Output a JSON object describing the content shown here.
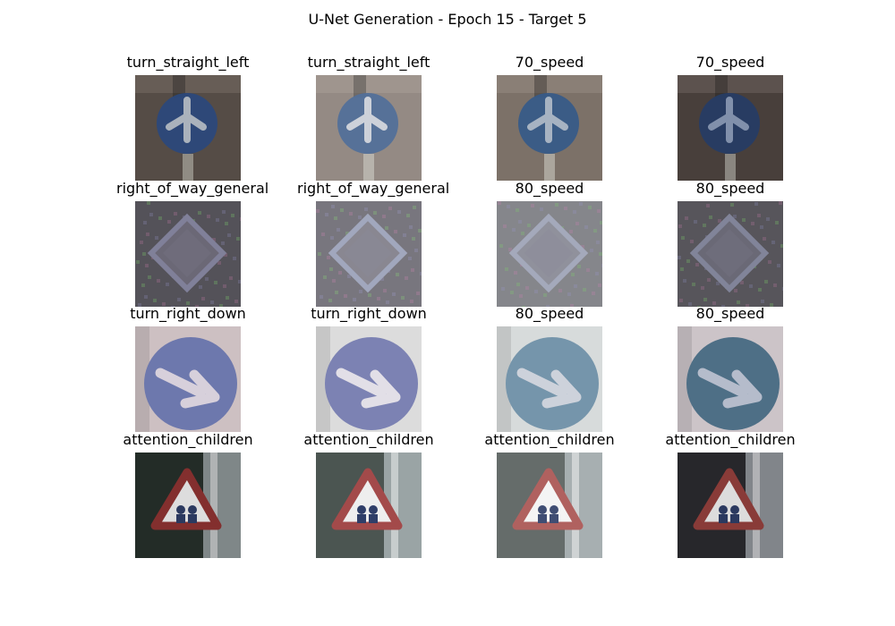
{
  "figure": {
    "title": "U-Net Generation - Epoch 15 - Target 5"
  },
  "grid": {
    "rows": [
      {
        "cells": [
          {
            "label": "turn_straight_left",
            "sign": "blue-circle-arrows",
            "tone": "dark",
            "background": "#5d534c",
            "sign_color": "#2f4f86",
            "symbol_color": "#b9c2cd"
          },
          {
            "label": "turn_straight_left",
            "sign": "blue-circle-arrows",
            "tone": "light",
            "background": "#8b817a",
            "sign_color": "#456391",
            "symbol_color": "#c9ced6"
          },
          {
            "label": "70_speed",
            "sign": "blue-circle-arrows",
            "tone": "medium",
            "background": "#7c7168",
            "sign_color": "#385b88",
            "symbol_color": "#a7b3c2"
          },
          {
            "label": "70_speed",
            "sign": "blue-circle-arrows",
            "tone": "dark",
            "background": "#4f4541",
            "sign_color": "#2a426e",
            "symbol_color": "#8d9dba"
          }
        ]
      },
      {
        "cells": [
          {
            "label": "right_of_way_general",
            "sign": "diamond",
            "tone": "dark",
            "background": "#5c5961",
            "sign_color": "#8b8ba6",
            "symbol_color": "#757180"
          },
          {
            "label": "right_of_way_general",
            "sign": "diamond",
            "tone": "light",
            "background": "#6d6b73",
            "sign_color": "#9aa0b8",
            "symbol_color": "#7f7d88"
          },
          {
            "label": "80_speed",
            "sign": "diamond",
            "tone": "light",
            "background": "#7b7c82",
            "sign_color": "#9da2b6",
            "symbol_color": "#878894"
          },
          {
            "label": "80_speed",
            "sign": "diamond",
            "tone": "dark",
            "background": "#5f5d63",
            "sign_color": "#8c90a6",
            "symbol_color": "#747280"
          }
        ]
      },
      {
        "cells": [
          {
            "label": "turn_right_down",
            "sign": "blue-circle-right",
            "tone": "medium",
            "background": "#c7b8ba",
            "sign_color": "#6d78ad",
            "symbol_color": "#d7d0db"
          },
          {
            "label": "turn_right_down",
            "sign": "blue-circle-right",
            "tone": "light",
            "background": "#d4d4d4",
            "sign_color": "#7178ad",
            "symbol_color": "#e0dde5"
          },
          {
            "label": "80_speed",
            "sign": "blue-circle-right",
            "tone": "light",
            "background": "#cfd3d3",
            "sign_color": "#6a8ca4",
            "symbol_color": "#c9cfd8"
          },
          {
            "label": "80_speed",
            "sign": "blue-circle-right",
            "tone": "medium",
            "background": "#c5bcc1",
            "sign_color": "#4e6f86",
            "symbol_color": "#b5bccb"
          }
        ]
      },
      {
        "cells": [
          {
            "label": "attention_children",
            "sign": "red-triangle",
            "tone": "dark",
            "background": "#26302b",
            "sign_color": "#8f3432",
            "symbol_color": "#f0f0f0"
          },
          {
            "label": "attention_children",
            "sign": "red-triangle",
            "tone": "medium",
            "background": "#4b5551",
            "sign_color": "#a34a4a",
            "symbol_color": "#eeeeee"
          },
          {
            "label": "attention_children",
            "sign": "red-triangle",
            "tone": "light",
            "background": "#58605e",
            "sign_color": "#aa5452",
            "symbol_color": "#f4f4f4"
          },
          {
            "label": "attention_children",
            "sign": "red-triangle",
            "tone": "dark",
            "background": "#2b2b2f",
            "sign_color": "#95403d",
            "symbol_color": "#efefef"
          }
        ]
      }
    ]
  }
}
